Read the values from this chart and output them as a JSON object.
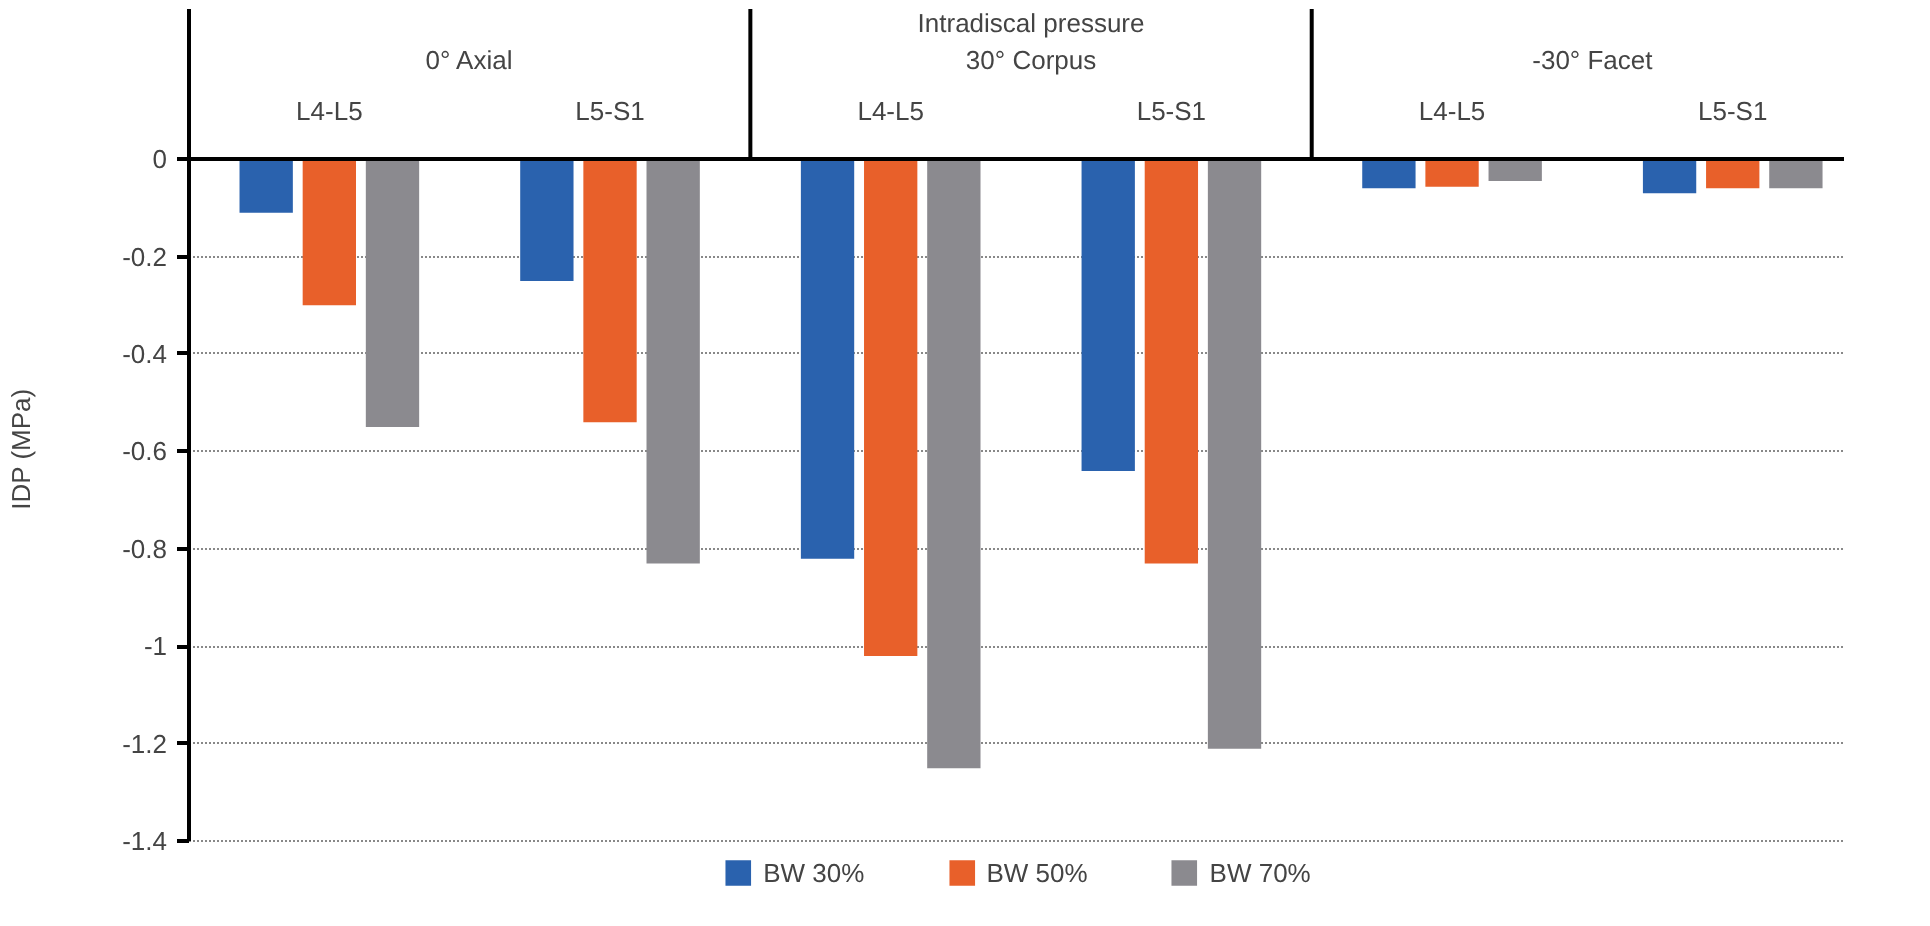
{
  "chart_data": {
    "type": "bar",
    "title": "Intradiscal pressure",
    "ylabel": "IDP (MPa)",
    "categories": [
      "L4-L5",
      "L5-S1",
      "L4-L5",
      "L5-S1",
      "L4-L5",
      "L5-S1"
    ],
    "annotations": [
      "0° Axial",
      "30° Corpus",
      "-30° Facet"
    ],
    "series": [
      {
        "name": "BW 30%",
        "color": "#2a62ae",
        "values": [
          -0.11,
          -0.25,
          -0.82,
          -0.64,
          -0.06,
          -0.07
        ]
      },
      {
        "name": "BW 50%",
        "color": "#e8602a",
        "values": [
          -0.3,
          -0.54,
          -1.02,
          -0.83,
          -0.057,
          -0.06
        ]
      },
      {
        "name": "BW 70%",
        "color": "#8b8a8f",
        "values": [
          -0.55,
          -0.83,
          -1.25,
          -1.21,
          -0.045,
          -0.06
        ]
      }
    ],
    "ylim": [
      -1.4,
      0
    ],
    "yticks": [
      0,
      -0.2,
      -0.4,
      -0.6,
      -0.8,
      -1,
      -1.2,
      -1.4
    ],
    "grid": "y",
    "legend": "bottom"
  }
}
